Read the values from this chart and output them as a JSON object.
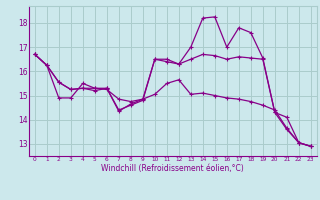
{
  "background_color": "#cce8ec",
  "grid_color": "#aacccc",
  "line_color": "#880088",
  "marker": "+",
  "xlabel": "Windchill (Refroidissement éolien,°C)",
  "xlim": [
    -0.5,
    23.5
  ],
  "ylim": [
    12.5,
    18.7
  ],
  "yticks": [
    13,
    14,
    15,
    16,
    17,
    18
  ],
  "xticks": [
    0,
    1,
    2,
    3,
    4,
    5,
    6,
    7,
    8,
    9,
    10,
    11,
    12,
    13,
    14,
    15,
    16,
    17,
    18,
    19,
    20,
    21,
    22,
    23
  ],
  "series": [
    [
      16.7,
      16.25,
      15.55,
      15.25,
      15.3,
      15.3,
      15.25,
      14.85,
      14.75,
      14.85,
      15.05,
      15.5,
      15.65,
      15.05,
      15.1,
      15.0,
      14.9,
      14.85,
      14.75,
      14.6,
      14.4,
      13.65,
      13.05,
      12.9
    ],
    [
      16.7,
      16.25,
      15.55,
      15.25,
      15.3,
      15.2,
      15.3,
      14.4,
      14.6,
      14.8,
      16.5,
      16.4,
      16.3,
      16.5,
      16.7,
      16.65,
      16.5,
      16.6,
      16.55,
      16.5,
      14.3,
      14.1,
      13.05,
      12.9
    ],
    [
      16.7,
      16.25,
      14.9,
      14.9,
      15.5,
      15.3,
      15.3,
      14.35,
      14.65,
      14.85,
      16.5,
      16.5,
      16.3,
      17.0,
      18.2,
      18.25,
      17.0,
      17.8,
      17.6,
      16.55,
      14.3,
      13.6,
      13.05,
      12.9
    ]
  ]
}
